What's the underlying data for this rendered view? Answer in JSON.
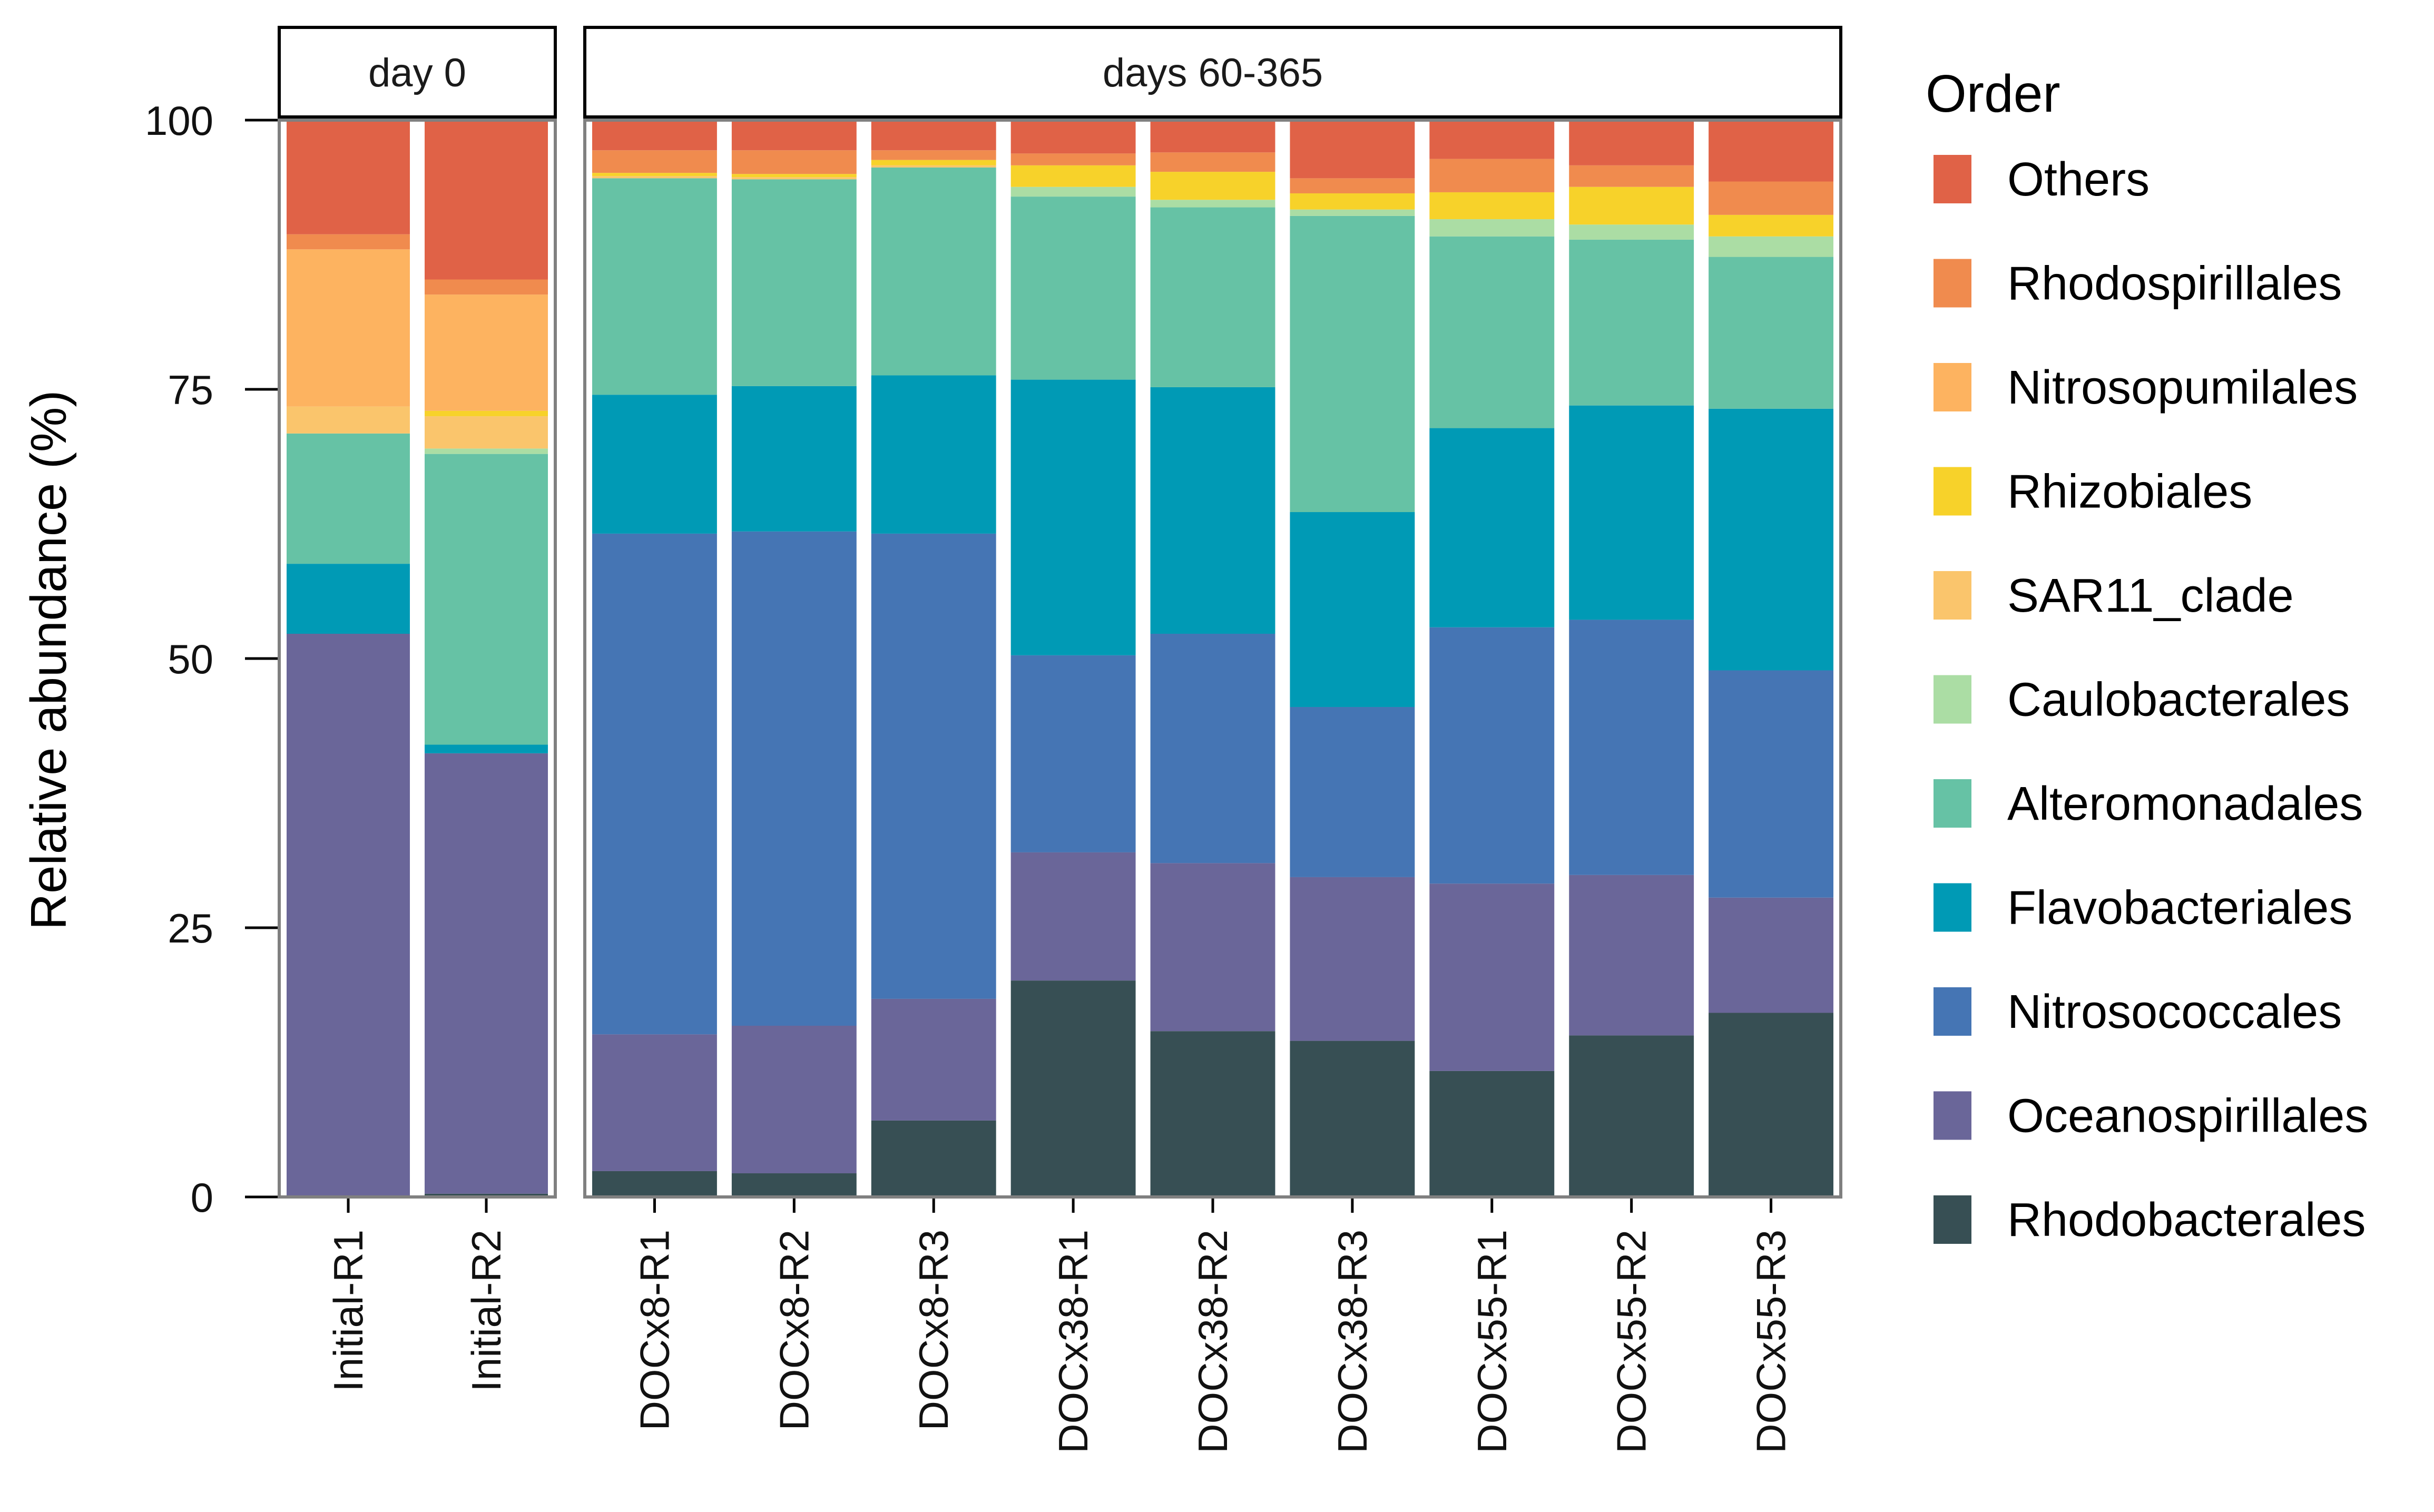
{
  "chart_data": {
    "type": "bar",
    "stacked": true,
    "title": "",
    "xlabel": "",
    "ylabel": "Relative abundance (%)",
    "ylim": [
      0,
      100
    ],
    "yticks": [
      "0",
      "25",
      "50",
      "75",
      "100"
    ],
    "ytick_values": [
      0,
      25,
      50,
      75,
      100
    ],
    "grid": false,
    "legend_title": "Order",
    "legend_position": "right",
    "facets": [
      {
        "label": "day 0",
        "categories": [
          "Initial-R1",
          "Initial-R2"
        ]
      },
      {
        "label": "days 60-365",
        "categories": [
          "DOCx8-R1",
          "DOCx8-R2",
          "DOCx8-R3",
          "DOCx38-R1",
          "DOCx38-R2",
          "DOCx38-R3",
          "DOCx55-R1",
          "DOCx55-R2",
          "DOCx55-R3"
        ]
      }
    ],
    "categories": [
      "Initial-R1",
      "Initial-R2",
      "DOCx8-R1",
      "DOCx8-R2",
      "DOCx8-R3",
      "DOCx38-R1",
      "DOCx38-R2",
      "DOCx38-R3",
      "DOCx55-R1",
      "DOCx55-R2",
      "DOCx55-R3"
    ],
    "legend_order": [
      "Others",
      "Rhodospirillales",
      "Nitrosopumilales",
      "Rhizobiales",
      "SAR11_clade",
      "Caulobacterales",
      "Alteromonadales",
      "Flavobacteriales",
      "Nitrosococcales",
      "Oceanospirillales",
      "Rhodobacterales"
    ],
    "series": [
      {
        "name": "Rhodobacterales",
        "color": "#374F54",
        "values": [
          0.0,
          0.3,
          2.4,
          2.2,
          7.1,
          20.1,
          15.4,
          14.5,
          11.7,
          15.0,
          17.1
        ]
      },
      {
        "name": "Oceanospirillales",
        "color": "#6A6699",
        "values": [
          52.3,
          40.9,
          12.7,
          13.7,
          11.3,
          11.9,
          15.6,
          15.2,
          17.4,
          14.9,
          10.7
        ]
      },
      {
        "name": "Nitrosococcales",
        "color": "#4575B4",
        "values": [
          0.0,
          0.0,
          46.5,
          45.9,
          43.2,
          18.3,
          21.3,
          15.8,
          23.8,
          23.7,
          21.1
        ]
      },
      {
        "name": "Flavobacteriales",
        "color": "#009AB5",
        "values": [
          6.5,
          0.8,
          12.9,
          13.5,
          14.7,
          25.6,
          22.9,
          18.1,
          18.5,
          19.9,
          24.3
        ]
      },
      {
        "name": "Alteromonadales",
        "color": "#66C2A5",
        "values": [
          12.1,
          27.0,
          20.1,
          19.2,
          19.3,
          17.0,
          16.7,
          27.5,
          17.8,
          15.4,
          14.1
        ]
      },
      {
        "name": "Caulobacterales",
        "color": "#ABDDA4",
        "values": [
          0.0,
          0.5,
          0.0,
          0.0,
          0.0,
          0.9,
          0.7,
          0.6,
          1.6,
          1.4,
          1.9
        ]
      },
      {
        "name": "SAR11_clade",
        "color": "#FAC56C",
        "values": [
          2.5,
          3.0,
          0.2,
          0.2,
          0.2,
          0.0,
          0.0,
          0.0,
          0.0,
          0.0,
          0.0
        ]
      },
      {
        "name": "Rhizobiales",
        "color": "#F7D22A",
        "values": [
          0.0,
          0.5,
          0.3,
          0.3,
          0.5,
          2.0,
          2.6,
          1.5,
          2.5,
          3.5,
          2.0
        ]
      },
      {
        "name": "Nitrosopumilales",
        "color": "#FDB360",
        "values": [
          14.6,
          10.8,
          0.0,
          0.0,
          0.0,
          0.0,
          0.0,
          0.0,
          0.0,
          0.0,
          0.0
        ]
      },
      {
        "name": "Rhodospirillales",
        "color": "#F08B4E",
        "values": [
          1.4,
          1.4,
          2.1,
          2.2,
          0.9,
          1.1,
          1.8,
          1.4,
          3.1,
          2.0,
          3.1
        ]
      },
      {
        "name": "Others",
        "color": "#E06247",
        "values": [
          10.6,
          14.8,
          2.8,
          2.8,
          2.8,
          3.1,
          3.0,
          5.4,
          3.6,
          4.2,
          5.7
        ]
      }
    ]
  }
}
